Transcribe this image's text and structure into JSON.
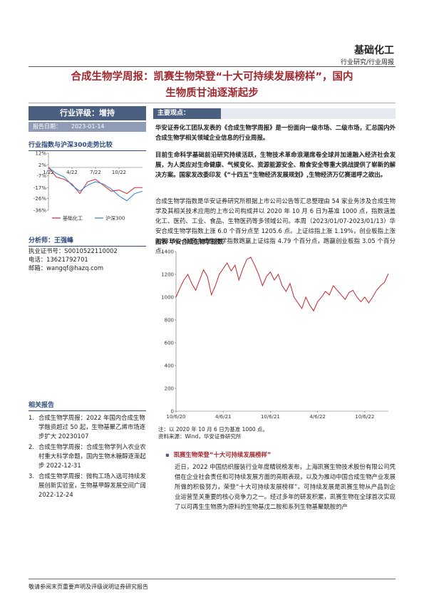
{
  "header": {
    "sector": "基础化工",
    "category": "行业研究/行业周报"
  },
  "title": {
    "line1": "合成生物学周报：凯赛生物荣登“十大可持续发展榜样”，国内",
    "line2": "生物质甘油逐渐起步"
  },
  "sidebar": {
    "rating": "行业评级：增持",
    "date_label": "报告日期：",
    "date": "2023-01-14",
    "chart_heading": "行业指数与沪深300走势比较",
    "analyst": "分析师：王强峰",
    "contacts": [
      {
        "label": "执业证书号：",
        "value": "S0010522110002"
      },
      {
        "label": "电话：",
        "value": "13621792701"
      },
      {
        "label": "邮箱：",
        "value": "wangqf@hazq.com"
      }
    ],
    "related_heading": "相关报告",
    "related": [
      {
        "num": "1.",
        "text": "合成生物学周报：2022 年国内合成生物学融资超过 50 起，生物基聚乙烯市场逐步扩大 20230107"
      },
      {
        "num": "2.",
        "text": "合成生物学周报：合成生物学列入农业农村重大科学命题，国内生物木糖醇逐渐起步 2022-12-31"
      },
      {
        "num": "3.",
        "text": "合成生物学周报：微构工场入选可持续发展创新实验室，生物基甲醇发展空间广阔 2022-12-24"
      }
    ]
  },
  "main": {
    "heading": "主要观点：",
    "p1": "华安证券化工团队发表的《合成生物学周报》是一份面向一级市场、二级市场，汇总国内外合成生物学相关领域企业信息的行业周报。",
    "p2": "目前生命科学基础前沿研究持续活跃，生物技术革命浪潮席卷全球并加速融入经济社会发展，为人类应对生命健康、气候变化、资源能源安全、粮食安全等重大挑战提供了崭新的解决方案。国家发改委印发《“十四五”生物经济发展规划》,生物经济万亿赛道呼之欲出。",
    "p3": "合成生物学指数是华安证券研究所根据上市公司公告等汇总整理由 54 家业务涉及合成生物学及其相关技术应用的上市公司构成并以 2020 年 10 月 6 日为基准 1000 点，指数涵盖化工、医药、工业、食品、生物医药等多领域公司。本周（2023/01/07-2023/01/13）华安合成生物学指数上涨 6.0 个百分点至 1205.6 点。上证综指上涨 1.19%，创业板指上涨 2.931%，华安合成生物学指数跑赢上证综指 4.79 个百分点，跑赢创业板指 3.05 个百分点。",
    "chart_title": "图表 华安合成生物学指数",
    "note": "注：以 2020 年 10 月 6 日为基准 1000 点。",
    "source": "资料来源：Wind，华安证券研究所",
    "bullet": "凯赛生物荣登“十大可持续发展榜样”",
    "p4": "近日，2022 中国纺织服装行业年度精锐榜发布，上海凯赛生物技术股份有限公司凭借在企业社会责任和可持续发展方面的亮眼表现，以及为推动中国合成生物产业发展所做的积极努力，荣登“十大可持续发展榜样”。可持续发展是凯赛生物从产品到企业运营至关重要的核心竞争力之一。经过多年的研发积累，凯赛生物在全球首次实现了以可再生生物质为原料的生物基戊二胺和系列生物基聚酰胺的产"
  },
  "footer": "敬请参阅末页重要声明及评级说明证券研究报告",
  "chart_data": [
    {
      "type": "line",
      "ylim": [
        -36,
        12
      ],
      "yticks": [
        {
          "value": 12,
          "label": "12%"
        },
        {
          "value": 2,
          "label": "2%"
        },
        {
          "value": -7,
          "label": "-7%"
        },
        {
          "value": -17,
          "label": "-17%"
        },
        {
          "value": -26,
          "label": "-26%"
        },
        {
          "value": -36,
          "label": "-36%"
        }
      ],
      "xlim": [
        0,
        12
      ],
      "xticks": [
        {
          "value": 0,
          "label": "1/22"
        },
        {
          "value": 3,
          "label": "4/22"
        },
        {
          "value": 6,
          "label": "7/22"
        },
        {
          "value": 9,
          "label": "10/22"
        }
      ],
      "series": [
        {
          "name": "基础化工",
          "color": "#d9262c",
          "values": [
            0,
            -8,
            -10,
            -14,
            -22,
            -12,
            -10,
            -15,
            -20,
            -19,
            -22,
            -17,
            -17
          ]
        },
        {
          "name": "沪深300",
          "color": "#2f7fd0",
          "values": [
            0,
            -5,
            -8,
            -15,
            -20,
            -15,
            -12,
            -14,
            -18,
            -24,
            -28,
            -22,
            -20
          ]
        }
      ]
    },
    {
      "type": "line",
      "ylim": [
        0,
        1400
      ],
      "yticks": [
        0,
        200,
        400,
        600,
        800,
        1000,
        1200,
        1400
      ],
      "xlim": [
        0,
        54
      ],
      "xticks": [
        {
          "value": 0,
          "label": "10/6/20"
        },
        {
          "value": 12,
          "label": "4/6/21"
        },
        {
          "value": 24,
          "label": "10/6/21"
        },
        {
          "value": 36,
          "label": "4/6/22"
        },
        {
          "value": 48,
          "label": "10/6/22"
        }
      ],
      "series": [
        {
          "color": "#c8232a",
          "values": [
            1000,
            1080,
            1150,
            1200,
            1120,
            1060,
            1150,
            1240,
            1180,
            1020,
            1100,
            1200,
            1250,
            1300,
            1230,
            1280,
            1150,
            1250,
            1330,
            1350,
            1280,
            1200,
            1100,
            1180,
            1220,
            1150,
            1200,
            1100,
            1050,
            1120,
            1000,
            950,
            900,
            1000,
            930,
            880,
            960,
            1000,
            1050,
            1020,
            1100,
            1060,
            1020,
            980,
            1040,
            1060,
            1000,
            960,
            1000,
            950,
            1000,
            1060,
            1100,
            1130,
            1205.6
          ]
        }
      ]
    }
  ]
}
